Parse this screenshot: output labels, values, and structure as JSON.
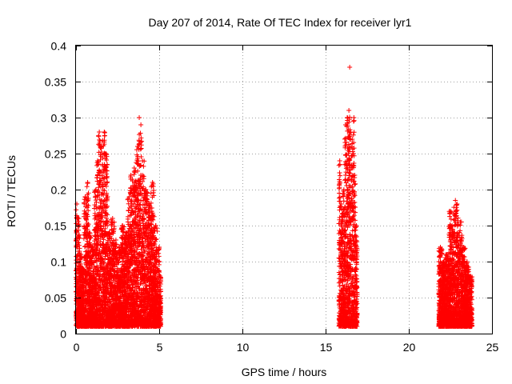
{
  "chart_data": {
    "type": "scatter",
    "title": "Day 207 of 2014, Rate Of TEC Index for receiver lyr1",
    "xlabel": "GPS time / hours",
    "ylabel": "ROTI / TECUs",
    "xlim": [
      0,
      25
    ],
    "ylim": [
      0,
      0.4
    ],
    "grid": true,
    "marker": "+",
    "color": "#ff0000",
    "x_ticks": [
      0,
      5,
      10,
      15,
      20,
      25
    ],
    "x_tick_labels": [
      "0",
      "5",
      "10",
      "15",
      "20",
      "25"
    ],
    "y_ticks": [
      0,
      0.05,
      0.1,
      0.15,
      0.2,
      0.25,
      0.3,
      0.35,
      0.4
    ],
    "y_tick_labels": [
      "0",
      "0.05",
      "0.1",
      "0.15",
      "0.2",
      "0.25",
      "0.3",
      "0.35",
      "0.4"
    ],
    "series": [
      {
        "name": "ROTI",
        "clusters": [
          {
            "x_range": [
              0.0,
              5.1
            ],
            "y_range": [
              0.01,
              0.28
            ],
            "density": "dense",
            "peak_y": 0.3
          },
          {
            "x_range": [
              15.8,
              16.9
            ],
            "y_range": [
              0.01,
              0.31
            ],
            "density": "dense",
            "peak_y": 0.37
          },
          {
            "x_range": [
              21.8,
              23.8
            ],
            "y_range": [
              0.01,
              0.18
            ],
            "density": "dense",
            "peak_y": 0.185
          }
        ],
        "points": [
          [
            0.05,
            0.18
          ],
          [
            0.15,
            0.16
          ],
          [
            0.3,
            0.11
          ],
          [
            0.4,
            0.09
          ],
          [
            0.55,
            0.19
          ],
          [
            0.7,
            0.21
          ],
          [
            0.8,
            0.14
          ],
          [
            1.0,
            0.12
          ],
          [
            1.2,
            0.2
          ],
          [
            1.3,
            0.24
          ],
          [
            1.4,
            0.28
          ],
          [
            1.5,
            0.26
          ],
          [
            1.7,
            0.28
          ],
          [
            1.8,
            0.25
          ],
          [
            2.0,
            0.14
          ],
          [
            2.2,
            0.16
          ],
          [
            2.4,
            0.13
          ],
          [
            2.6,
            0.12
          ],
          [
            2.8,
            0.15
          ],
          [
            3.0,
            0.14
          ],
          [
            3.2,
            0.19
          ],
          [
            3.3,
            0.22
          ],
          [
            3.5,
            0.23
          ],
          [
            3.7,
            0.26
          ],
          [
            3.8,
            0.3
          ],
          [
            3.9,
            0.29
          ],
          [
            4.0,
            0.24
          ],
          [
            4.2,
            0.2
          ],
          [
            4.4,
            0.18
          ],
          [
            4.6,
            0.21
          ],
          [
            4.8,
            0.15
          ],
          [
            5.0,
            0.12
          ],
          [
            5.05,
            0.08
          ],
          [
            15.85,
            0.24
          ],
          [
            15.95,
            0.18
          ],
          [
            16.1,
            0.2
          ],
          [
            16.2,
            0.29
          ],
          [
            16.3,
            0.3
          ],
          [
            16.4,
            0.31
          ],
          [
            16.45,
            0.37
          ],
          [
            16.5,
            0.28
          ],
          [
            16.6,
            0.27
          ],
          [
            16.7,
            0.3
          ],
          [
            16.75,
            0.22
          ],
          [
            16.85,
            0.15
          ],
          [
            21.9,
            0.12
          ],
          [
            22.1,
            0.1
          ],
          [
            22.3,
            0.11
          ],
          [
            22.5,
            0.17
          ],
          [
            22.6,
            0.15
          ],
          [
            22.8,
            0.185
          ],
          [
            22.9,
            0.18
          ],
          [
            23.1,
            0.155
          ],
          [
            23.3,
            0.12
          ],
          [
            23.5,
            0.1
          ],
          [
            23.7,
            0.08
          ]
        ]
      }
    ]
  }
}
